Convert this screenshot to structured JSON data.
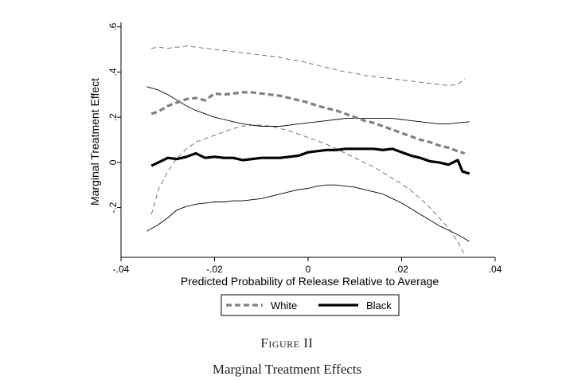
{
  "figure": {
    "label": "Figure II",
    "title": "Marginal Treatment Effects"
  },
  "chart_data": {
    "type": "line",
    "xlabel": "Predicted Probability of Release Relative to Average",
    "ylabel": "Marginal Treatment Effect",
    "xlim": [
      -0.04,
      0.04
    ],
    "ylim": [
      -0.42,
      0.62
    ],
    "x_ticks": [
      -0.04,
      -0.02,
      0,
      0.02,
      0.04
    ],
    "x_tick_labels": [
      "-.04",
      "-.02",
      "0",
      ".02",
      ".04"
    ],
    "y_ticks": [
      -0.2,
      0,
      0.2,
      0.4,
      0.6
    ],
    "y_tick_labels": [
      "-.2",
      "0",
      ".2",
      ".4",
      ".6"
    ],
    "grid": false,
    "legend": {
      "position": "bottom",
      "entries": [
        "White",
        "Black"
      ]
    },
    "series": [
      {
        "name": "White",
        "style": "dashed-thick",
        "color": "#808080",
        "x": [
          -0.0335,
          -0.032,
          -0.03,
          -0.028,
          -0.026,
          -0.024,
          -0.022,
          -0.02,
          -0.018,
          -0.016,
          -0.014,
          -0.012,
          -0.01,
          -0.008,
          -0.006,
          -0.004,
          -0.002,
          0.0,
          0.002,
          0.004,
          0.006,
          0.008,
          0.01,
          0.012,
          0.014,
          0.016,
          0.018,
          0.02,
          0.022,
          0.024,
          0.026,
          0.028,
          0.03,
          0.032,
          0.0335
        ],
        "values": [
          0.215,
          0.225,
          0.25,
          0.265,
          0.28,
          0.285,
          0.275,
          0.305,
          0.3,
          0.305,
          0.31,
          0.31,
          0.305,
          0.3,
          0.295,
          0.285,
          0.275,
          0.265,
          0.25,
          0.24,
          0.23,
          0.215,
          0.2,
          0.185,
          0.175,
          0.16,
          0.145,
          0.13,
          0.115,
          0.1,
          0.09,
          0.075,
          0.065,
          0.05,
          0.04
        ]
      },
      {
        "name": "Black",
        "style": "solid-thick",
        "color": "#000000",
        "x": [
          -0.0335,
          -0.032,
          -0.03,
          -0.028,
          -0.026,
          -0.024,
          -0.022,
          -0.02,
          -0.018,
          -0.016,
          -0.014,
          -0.012,
          -0.01,
          -0.008,
          -0.006,
          -0.004,
          -0.002,
          0.0,
          0.002,
          0.004,
          0.006,
          0.008,
          0.01,
          0.012,
          0.014,
          0.016,
          0.018,
          0.02,
          0.022,
          0.024,
          0.026,
          0.028,
          0.03,
          0.032,
          0.033,
          0.0345
        ],
        "values": [
          -0.015,
          0.0,
          0.02,
          0.015,
          0.025,
          0.04,
          0.02,
          0.025,
          0.02,
          0.02,
          0.01,
          0.015,
          0.02,
          0.02,
          0.02,
          0.025,
          0.03,
          0.045,
          0.05,
          0.055,
          0.055,
          0.06,
          0.06,
          0.06,
          0.06,
          0.055,
          0.06,
          0.045,
          0.03,
          0.02,
          0.005,
          0.0,
          -0.01,
          0.01,
          -0.04,
          -0.05
        ]
      },
      {
        "name": "",
        "style": "dashed-thin",
        "color": "#666666",
        "x": [
          -0.0335,
          -0.032,
          -0.03,
          -0.028,
          -0.026,
          -0.024,
          -0.022,
          -0.02,
          -0.018,
          -0.016,
          -0.014,
          -0.012,
          -0.01,
          -0.008,
          -0.006,
          -0.004,
          -0.002,
          0.0,
          0.002,
          0.004,
          0.006,
          0.008,
          0.01,
          0.012,
          0.014,
          0.016,
          0.018,
          0.02,
          0.022,
          0.024,
          0.026,
          0.028,
          0.03,
          0.032,
          0.0335
        ],
        "values": [
          0.505,
          0.51,
          0.505,
          0.51,
          0.515,
          0.51,
          0.505,
          0.5,
          0.495,
          0.49,
          0.485,
          0.48,
          0.475,
          0.47,
          0.465,
          0.455,
          0.45,
          0.44,
          0.43,
          0.42,
          0.41,
          0.4,
          0.395,
          0.385,
          0.38,
          0.375,
          0.37,
          0.365,
          0.36,
          0.355,
          0.35,
          0.345,
          0.34,
          0.345,
          0.37
        ]
      },
      {
        "name": "",
        "style": "dashed-thin",
        "color": "#666666",
        "x": [
          -0.0335,
          -0.032,
          -0.03,
          -0.028,
          -0.026,
          -0.024,
          -0.022,
          -0.02,
          -0.018,
          -0.016,
          -0.014,
          -0.012,
          -0.01,
          -0.008,
          -0.006,
          -0.004,
          -0.002,
          0.0,
          0.002,
          0.004,
          0.006,
          0.008,
          0.01,
          0.012,
          0.014,
          0.016,
          0.018,
          0.02,
          0.022,
          0.024,
          0.026,
          0.028,
          0.03,
          0.032,
          0.0335
        ],
        "values": [
          -0.23,
          -0.12,
          -0.04,
          0.02,
          0.06,
          0.09,
          0.105,
          0.12,
          0.135,
          0.15,
          0.16,
          0.165,
          0.165,
          0.16,
          0.15,
          0.14,
          0.125,
          0.11,
          0.095,
          0.08,
          0.06,
          0.04,
          0.02,
          0.0,
          -0.02,
          -0.045,
          -0.07,
          -0.095,
          -0.125,
          -0.16,
          -0.2,
          -0.245,
          -0.29,
          -0.35,
          -0.41
        ]
      },
      {
        "name": "",
        "style": "solid-thin",
        "color": "#000000",
        "x": [
          -0.0345,
          -0.032,
          -0.03,
          -0.028,
          -0.026,
          -0.024,
          -0.022,
          -0.02,
          -0.018,
          -0.016,
          -0.014,
          -0.012,
          -0.01,
          -0.008,
          -0.006,
          -0.004,
          -0.002,
          0.0,
          0.002,
          0.004,
          0.006,
          0.008,
          0.01,
          0.012,
          0.014,
          0.016,
          0.018,
          0.02,
          0.022,
          0.024,
          0.026,
          0.028,
          0.03,
          0.032,
          0.0345
        ],
        "values": [
          0.335,
          0.32,
          0.3,
          0.275,
          0.25,
          0.23,
          0.215,
          0.2,
          0.19,
          0.18,
          0.17,
          0.165,
          0.16,
          0.16,
          0.16,
          0.165,
          0.17,
          0.175,
          0.18,
          0.185,
          0.19,
          0.195,
          0.195,
          0.195,
          0.195,
          0.195,
          0.195,
          0.19,
          0.185,
          0.18,
          0.175,
          0.17,
          0.17,
          0.175,
          0.18
        ]
      },
      {
        "name": "",
        "style": "solid-thin",
        "color": "#000000",
        "x": [
          -0.0345,
          -0.032,
          -0.03,
          -0.028,
          -0.026,
          -0.024,
          -0.022,
          -0.02,
          -0.018,
          -0.016,
          -0.014,
          -0.012,
          -0.01,
          -0.008,
          -0.006,
          -0.004,
          -0.002,
          0.0,
          0.002,
          0.004,
          0.006,
          0.008,
          0.01,
          0.012,
          0.014,
          0.016,
          0.018,
          0.02,
          0.022,
          0.024,
          0.026,
          0.028,
          0.03,
          0.032,
          0.0345
        ],
        "values": [
          -0.305,
          -0.275,
          -0.245,
          -0.21,
          -0.195,
          -0.185,
          -0.18,
          -0.175,
          -0.175,
          -0.17,
          -0.17,
          -0.165,
          -0.16,
          -0.15,
          -0.14,
          -0.13,
          -0.12,
          -0.115,
          -0.105,
          -0.1,
          -0.1,
          -0.105,
          -0.11,
          -0.12,
          -0.13,
          -0.14,
          -0.16,
          -0.18,
          -0.205,
          -0.23,
          -0.255,
          -0.28,
          -0.3,
          -0.32,
          -0.35
        ]
      }
    ]
  }
}
